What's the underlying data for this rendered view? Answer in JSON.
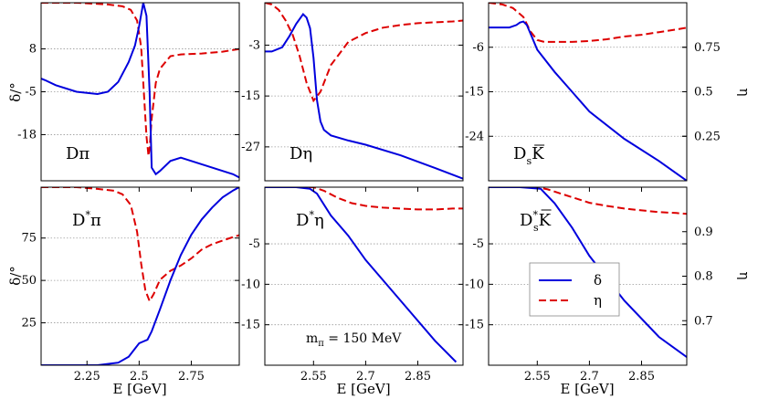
{
  "chart_data": {
    "type": "line",
    "figure_labels": {
      "y_left": "δ/°",
      "y_right": "η",
      "x": "E [GeV]"
    },
    "legend": [
      {
        "name": "δ",
        "color": "#0000dd",
        "style": "solid"
      },
      {
        "name": "η",
        "color": "#dd0000",
        "style": "dashed"
      }
    ],
    "annotation": "m",
    "annotation_sub": "π",
    "annotation_rest": " = 150 MeV",
    "panels": [
      {
        "id": "D-pi",
        "label": "Dπ",
        "label_main": "Dπ",
        "label_sup": "",
        "label_sub": "",
        "label_tail": "",
        "xlim": [
          2.03,
          2.98
        ],
        "ylim_delta": [
          -32,
          22
        ],
        "ylim_eta": [
          0,
          1
        ],
        "xticks": [],
        "xtick_labels": [],
        "yticks_left": [
          8,
          -5,
          -18
        ],
        "yticks_left_labels": [
          "8",
          "-5",
          "-18"
        ],
        "yticks_right": [],
        "yticks_right_labels": [],
        "gridlines": [
          8,
          -5,
          -18
        ],
        "delta": {
          "x": [
            2.03,
            2.05,
            2.1,
            2.2,
            2.3,
            2.35,
            2.4,
            2.45,
            2.48,
            2.5,
            2.52,
            2.535,
            2.55,
            2.56,
            2.58,
            2.6,
            2.65,
            2.7,
            2.75,
            2.85,
            2.95,
            2.98
          ],
          "y": [
            -1,
            -1.5,
            -3,
            -5,
            -5.7,
            -5,
            -2,
            4,
            9,
            15,
            22,
            18,
            -5,
            -28,
            -30,
            -29,
            -26,
            -25,
            -26,
            -28,
            -30,
            -31
          ]
        },
        "eta": {
          "x": [
            2.03,
            2.2,
            2.35,
            2.42,
            2.46,
            2.49,
            2.51,
            2.52,
            2.535,
            2.545,
            2.55,
            2.56,
            2.58,
            2.6,
            2.65,
            2.7,
            2.8,
            2.9,
            2.98
          ],
          "y": [
            1.0,
            1.0,
            0.99,
            0.98,
            0.96,
            0.9,
            0.75,
            0.55,
            0.25,
            0.14,
            0.18,
            0.35,
            0.55,
            0.63,
            0.7,
            0.71,
            0.715,
            0.725,
            0.74
          ]
        }
      },
      {
        "id": "D-eta",
        "label": "Dη",
        "label_main": "Dη",
        "label_sup": "",
        "label_sub": "",
        "label_tail": "",
        "xlim": [
          2.41,
          2.98
        ],
        "ylim_delta": [
          -35,
          7
        ],
        "ylim_eta": [
          0,
          1
        ],
        "xticks": [],
        "xtick_labels": [],
        "yticks_left": [
          -3,
          -15,
          -27
        ],
        "yticks_left_labels": [
          "-3",
          "-15",
          "-27"
        ],
        "yticks_right": [],
        "yticks_right_labels": [],
        "gridlines": [
          -3,
          -15,
          -27
        ],
        "delta": {
          "x": [
            2.41,
            2.43,
            2.46,
            2.48,
            2.5,
            2.52,
            2.53,
            2.54,
            2.55,
            2.56,
            2.57,
            2.58,
            2.6,
            2.65,
            2.7,
            2.8,
            2.9,
            2.98
          ],
          "y": [
            -4.5,
            -4.5,
            -3.5,
            -1,
            2,
            4.3,
            3.5,
            1,
            -6,
            -16,
            -21,
            -23,
            -24.3,
            -25.5,
            -26.5,
            -29,
            -32,
            -34.5
          ]
        },
        "eta": {
          "x": [
            2.41,
            2.43,
            2.45,
            2.47,
            2.49,
            2.51,
            2.53,
            2.55,
            2.57,
            2.6,
            2.65,
            2.7,
            2.75,
            2.8,
            2.85,
            2.9,
            2.95,
            2.98
          ],
          "y": [
            1.0,
            0.99,
            0.96,
            0.9,
            0.82,
            0.7,
            0.55,
            0.45,
            0.5,
            0.65,
            0.78,
            0.83,
            0.86,
            0.875,
            0.885,
            0.89,
            0.895,
            0.9
          ]
        }
      },
      {
        "id": "Ds-Kbar",
        "label": "DsK̄",
        "label_main": "D",
        "label_sup": "",
        "label_sub": "s",
        "label_tail": "K",
        "xlim": [
          2.41,
          2.98
        ],
        "ylim_delta": [
          -33,
          3
        ],
        "ylim_eta": [
          0,
          1
        ],
        "xticks": [],
        "xtick_labels": [],
        "yticks_left": [
          -6,
          -15,
          -24
        ],
        "yticks_left_labels": [
          "-6",
          "-15",
          "-24"
        ],
        "yticks_right": [
          0.75,
          0.5,
          0.25
        ],
        "yticks_right_labels": [
          "0.75",
          "0.5",
          "0.25"
        ],
        "gridlines": [
          -6,
          -15,
          -24
        ],
        "delta": {
          "x": [
            2.41,
            2.44,
            2.47,
            2.49,
            2.5,
            2.51,
            2.52,
            2.535,
            2.55,
            2.6,
            2.65,
            2.7,
            2.8,
            2.9,
            2.98
          ],
          "y": [
            -2,
            -2,
            -2,
            -1.5,
            -1,
            -0.8,
            -1.5,
            -4,
            -6.5,
            -11,
            -15,
            -19,
            -24.5,
            -29,
            -33
          ]
        },
        "eta": {
          "x": [
            2.41,
            2.45,
            2.48,
            2.51,
            2.53,
            2.55,
            2.57,
            2.6,
            2.65,
            2.7,
            2.75,
            2.8,
            2.85,
            2.9,
            2.95,
            2.98
          ],
          "y": [
            1.0,
            0.99,
            0.97,
            0.92,
            0.84,
            0.79,
            0.78,
            0.78,
            0.78,
            0.785,
            0.795,
            0.81,
            0.82,
            0.835,
            0.85,
            0.86
          ]
        }
      },
      {
        "id": "Dstar-pi",
        "label": "D*π",
        "label_main": "D",
        "label_sup": "*",
        "label_sub": "",
        "label_tail": "π",
        "xlim": [
          2.03,
          2.98
        ],
        "ylim_delta": [
          0,
          105
        ],
        "ylim_eta": [
          0,
          1
        ],
        "xticks": [
          2.25,
          2.5,
          2.75
        ],
        "xtick_labels": [
          "2.25",
          "2.5",
          "2.75"
        ],
        "yticks_left": [
          75,
          50,
          25
        ],
        "yticks_left_labels": [
          "75",
          "50",
          "25"
        ],
        "yticks_right": [],
        "yticks_right_labels": [],
        "gridlines": [
          75,
          50,
          25
        ],
        "delta": {
          "x": [
            2.03,
            2.3,
            2.4,
            2.45,
            2.5,
            2.52,
            2.54,
            2.56,
            2.6,
            2.65,
            2.7,
            2.75,
            2.8,
            2.85,
            2.9,
            2.95,
            2.98
          ],
          "y": [
            0,
            0,
            1.5,
            5,
            13,
            14,
            15,
            20,
            33,
            50,
            65,
            77,
            86,
            93,
            99,
            103,
            105
          ]
        },
        "eta": {
          "x": [
            2.03,
            2.2,
            2.3,
            2.38,
            2.42,
            2.46,
            2.49,
            2.51,
            2.53,
            2.55,
            2.57,
            2.6,
            2.65,
            2.7,
            2.75,
            2.8,
            2.85,
            2.9,
            2.95,
            2.98
          ],
          "y": [
            1.0,
            1.0,
            0.99,
            0.98,
            0.96,
            0.9,
            0.75,
            0.57,
            0.42,
            0.36,
            0.4,
            0.48,
            0.53,
            0.56,
            0.6,
            0.65,
            0.68,
            0.7,
            0.72,
            0.73
          ]
        }
      },
      {
        "id": "Dstar-eta",
        "label": "D*η",
        "label_main": "D",
        "label_sup": "*",
        "label_sub": "",
        "label_tail": "η",
        "xlim": [
          2.41,
          2.98
        ],
        "ylim_delta": [
          -20,
          2
        ],
        "ylim_eta": [
          0,
          1
        ],
        "xticks": [
          2.55,
          2.7,
          2.85
        ],
        "xtick_labels": [
          "2.55",
          "2.7",
          "2.85"
        ],
        "yticks_left": [
          -5,
          -10,
          -15
        ],
        "yticks_left_labels": [
          "-5",
          "-10",
          "-15"
        ],
        "yticks_right": [],
        "yticks_right_labels": [],
        "gridlines": [
          -5,
          -10,
          -15
        ],
        "delta": {
          "x": [
            2.41,
            2.5,
            2.54,
            2.56,
            2.6,
            2.65,
            2.7,
            2.8,
            2.9,
            2.96
          ],
          "y": [
            2,
            2,
            1.8,
            1.2,
            -1.5,
            -4,
            -7,
            -12,
            -17,
            -19.6
          ]
        },
        "eta": {
          "x": [
            2.41,
            2.5,
            2.55,
            2.58,
            2.62,
            2.66,
            2.7,
            2.75,
            2.8,
            2.85,
            2.9,
            2.95,
            2.98
          ],
          "y": [
            1.0,
            1.0,
            1.0,
            0.98,
            0.94,
            0.91,
            0.895,
            0.885,
            0.88,
            0.875,
            0.875,
            0.88,
            0.88
          ]
        }
      },
      {
        "id": "Dsstar-Kbar",
        "label": "Ds*K̄",
        "label_main": "D",
        "label_sup": "*",
        "label_sub": "s",
        "label_tail": "K",
        "xlim": [
          2.41,
          2.98
        ],
        "ylim_delta": [
          -20,
          2
        ],
        "ylim_eta": [
          0.6,
          1.0
        ],
        "xticks": [
          2.55,
          2.7,
          2.85
        ],
        "xtick_labels": [
          "2.55",
          "2.7",
          "2.85"
        ],
        "yticks_left": [
          -5,
          -10,
          -15
        ],
        "yticks_left_labels": [
          "-5",
          "-10",
          "-15"
        ],
        "yticks_right": [
          0.9,
          0.8,
          0.7
        ],
        "yticks_right_labels": [
          "0.9",
          "0.8",
          "0.7"
        ],
        "gridlines": [
          -5,
          -10,
          -15
        ],
        "delta": {
          "x": [
            2.41,
            2.5,
            2.56,
            2.6,
            2.65,
            2.7,
            2.8,
            2.9,
            2.98
          ],
          "y": [
            2,
            2,
            1.8,
            0,
            -3,
            -6.5,
            -12,
            -16.5,
            -19
          ]
        },
        "eta": {
          "x": [
            2.41,
            2.55,
            2.58,
            2.62,
            2.66,
            2.7,
            2.75,
            2.8,
            2.85,
            2.9,
            2.95,
            2.98
          ],
          "y": [
            1.0,
            1.0,
            0.995,
            0.985,
            0.975,
            0.965,
            0.958,
            0.952,
            0.948,
            0.944,
            0.942,
            0.94
          ]
        }
      }
    ]
  }
}
